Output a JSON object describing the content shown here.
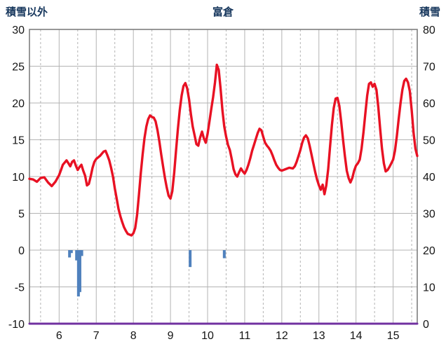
{
  "chart_data": {
    "type": "line",
    "title": "富倉",
    "left_axis_label": "積雪以外",
    "right_axis_label": "積雪",
    "x_ticks": [
      6,
      7,
      8,
      9,
      10,
      11,
      12,
      13,
      14,
      15
    ],
    "x_range": [
      5.2,
      15.65
    ],
    "left_axis": {
      "ticks": [
        -10,
        -5,
        0,
        5,
        10,
        15,
        20,
        25,
        30
      ],
      "range": [
        -10,
        30
      ]
    },
    "right_axis": {
      "ticks": [
        0,
        10,
        20,
        30,
        40,
        50,
        60,
        70,
        80
      ],
      "range": [
        0,
        80
      ]
    },
    "grid": {
      "vertical_solid_every": 1,
      "vertical_dashed_every": 0.5,
      "horizontal_every": 5
    },
    "legend": "none",
    "series": [
      {
        "name": "red-line-left-axis",
        "type": "line",
        "axis": "left",
        "points": [
          [
            5.2,
            9.7
          ],
          [
            5.3,
            9.6
          ],
          [
            5.4,
            9.3
          ],
          [
            5.5,
            9.8
          ],
          [
            5.6,
            9.9
          ],
          [
            5.7,
            9.2
          ],
          [
            5.8,
            8.7
          ],
          [
            5.9,
            9.3
          ],
          [
            6.0,
            10.2
          ],
          [
            6.05,
            10.9
          ],
          [
            6.1,
            11.6
          ],
          [
            6.2,
            12.2
          ],
          [
            6.25,
            11.8
          ],
          [
            6.3,
            11.4
          ],
          [
            6.35,
            12.0
          ],
          [
            6.4,
            12.2
          ],
          [
            6.45,
            11.5
          ],
          [
            6.5,
            10.9
          ],
          [
            6.55,
            11.3
          ],
          [
            6.6,
            11.6
          ],
          [
            6.65,
            10.8
          ],
          [
            6.7,
            10.1
          ],
          [
            6.75,
            8.8
          ],
          [
            6.8,
            9.0
          ],
          [
            6.85,
            10.0
          ],
          [
            6.9,
            11.2
          ],
          [
            6.95,
            12.0
          ],
          [
            7.0,
            12.4
          ],
          [
            7.1,
            12.8
          ],
          [
            7.2,
            13.4
          ],
          [
            7.25,
            13.5
          ],
          [
            7.3,
            12.9
          ],
          [
            7.35,
            12.2
          ],
          [
            7.4,
            11.2
          ],
          [
            7.45,
            10.0
          ],
          [
            7.5,
            8.4
          ],
          [
            7.55,
            7.0
          ],
          [
            7.6,
            5.6
          ],
          [
            7.65,
            4.6
          ],
          [
            7.7,
            3.8
          ],
          [
            7.75,
            3.1
          ],
          [
            7.8,
            2.6
          ],
          [
            7.85,
            2.2
          ],
          [
            7.9,
            2.1
          ],
          [
            7.95,
            2.0
          ],
          [
            8.0,
            2.3
          ],
          [
            8.05,
            3.0
          ],
          [
            8.1,
            4.8
          ],
          [
            8.15,
            7.5
          ],
          [
            8.2,
            10.5
          ],
          [
            8.25,
            13.0
          ],
          [
            8.3,
            15.2
          ],
          [
            8.35,
            16.8
          ],
          [
            8.4,
            17.8
          ],
          [
            8.45,
            18.3
          ],
          [
            8.5,
            18.1
          ],
          [
            8.55,
            18.0
          ],
          [
            8.6,
            17.5
          ],
          [
            8.65,
            16.3
          ],
          [
            8.7,
            14.8
          ],
          [
            8.75,
            13.0
          ],
          [
            8.8,
            11.4
          ],
          [
            8.85,
            9.8
          ],
          [
            8.9,
            8.5
          ],
          [
            8.95,
            7.4
          ],
          [
            9.0,
            7.0
          ],
          [
            9.05,
            8.0
          ],
          [
            9.1,
            10.5
          ],
          [
            9.15,
            13.5
          ],
          [
            9.2,
            16.5
          ],
          [
            9.25,
            19.0
          ],
          [
            9.3,
            21.0
          ],
          [
            9.35,
            22.3
          ],
          [
            9.4,
            22.7
          ],
          [
            9.45,
            22.0
          ],
          [
            9.5,
            20.5
          ],
          [
            9.55,
            18.5
          ],
          [
            9.6,
            16.8
          ],
          [
            9.65,
            15.6
          ],
          [
            9.7,
            14.4
          ],
          [
            9.75,
            14.2
          ],
          [
            9.8,
            15.3
          ],
          [
            9.85,
            16.1
          ],
          [
            9.9,
            15.2
          ],
          [
            9.95,
            14.6
          ],
          [
            10.0,
            15.8
          ],
          [
            10.05,
            17.5
          ],
          [
            10.1,
            19.2
          ],
          [
            10.15,
            20.8
          ],
          [
            10.2,
            22.8
          ],
          [
            10.25,
            25.2
          ],
          [
            10.3,
            24.5
          ],
          [
            10.35,
            22.0
          ],
          [
            10.4,
            19.0
          ],
          [
            10.45,
            16.8
          ],
          [
            10.5,
            15.4
          ],
          [
            10.55,
            14.3
          ],
          [
            10.6,
            13.6
          ],
          [
            10.65,
            12.4
          ],
          [
            10.7,
            11.0
          ],
          [
            10.75,
            10.3
          ],
          [
            10.8,
            10.0
          ],
          [
            10.85,
            10.6
          ],
          [
            10.9,
            11.1
          ],
          [
            10.95,
            10.7
          ],
          [
            11.0,
            10.4
          ],
          [
            11.05,
            10.9
          ],
          [
            11.1,
            11.6
          ],
          [
            11.15,
            12.5
          ],
          [
            11.2,
            13.5
          ],
          [
            11.25,
            14.3
          ],
          [
            11.3,
            15.1
          ],
          [
            11.35,
            15.9
          ],
          [
            11.4,
            16.5
          ],
          [
            11.45,
            16.3
          ],
          [
            11.5,
            15.4
          ],
          [
            11.55,
            14.6
          ],
          [
            11.6,
            14.2
          ],
          [
            11.65,
            13.9
          ],
          [
            11.7,
            13.5
          ],
          [
            11.75,
            12.9
          ],
          [
            11.8,
            12.2
          ],
          [
            11.85,
            11.6
          ],
          [
            11.9,
            11.2
          ],
          [
            11.95,
            10.9
          ],
          [
            12.0,
            10.8
          ],
          [
            12.1,
            11.0
          ],
          [
            12.2,
            11.2
          ],
          [
            12.3,
            11.1
          ],
          [
            12.35,
            11.4
          ],
          [
            12.4,
            12.0
          ],
          [
            12.45,
            12.8
          ],
          [
            12.5,
            13.6
          ],
          [
            12.55,
            14.6
          ],
          [
            12.6,
            15.3
          ],
          [
            12.65,
            15.6
          ],
          [
            12.7,
            15.2
          ],
          [
            12.75,
            14.2
          ],
          [
            12.8,
            13.0
          ],
          [
            12.85,
            11.8
          ],
          [
            12.9,
            10.6
          ],
          [
            12.95,
            9.6
          ],
          [
            13.0,
            8.8
          ],
          [
            13.05,
            8.2
          ],
          [
            13.1,
            8.9
          ],
          [
            13.15,
            7.6
          ],
          [
            13.2,
            8.8
          ],
          [
            13.25,
            11.0
          ],
          [
            13.3,
            14.0
          ],
          [
            13.35,
            17.0
          ],
          [
            13.4,
            19.3
          ],
          [
            13.45,
            20.6
          ],
          [
            13.5,
            20.7
          ],
          [
            13.55,
            19.6
          ],
          [
            13.6,
            17.5
          ],
          [
            13.65,
            15.0
          ],
          [
            13.7,
            12.8
          ],
          [
            13.75,
            10.8
          ],
          [
            13.8,
            9.8
          ],
          [
            13.85,
            9.2
          ],
          [
            13.9,
            9.8
          ],
          [
            13.95,
            10.8
          ],
          [
            14.0,
            11.5
          ],
          [
            14.05,
            11.8
          ],
          [
            14.1,
            12.3
          ],
          [
            14.15,
            13.8
          ],
          [
            14.2,
            16.0
          ],
          [
            14.25,
            18.5
          ],
          [
            14.3,
            21.0
          ],
          [
            14.35,
            22.6
          ],
          [
            14.4,
            22.8
          ],
          [
            14.45,
            22.2
          ],
          [
            14.5,
            22.6
          ],
          [
            14.55,
            21.8
          ],
          [
            14.6,
            19.5
          ],
          [
            14.65,
            16.5
          ],
          [
            14.7,
            13.8
          ],
          [
            14.75,
            11.8
          ],
          [
            14.8,
            10.7
          ],
          [
            14.85,
            10.9
          ],
          [
            14.9,
            11.3
          ],
          [
            14.95,
            11.8
          ],
          [
            15.0,
            12.3
          ],
          [
            15.05,
            13.5
          ],
          [
            15.1,
            15.5
          ],
          [
            15.15,
            17.8
          ],
          [
            15.2,
            20.0
          ],
          [
            15.25,
            21.8
          ],
          [
            15.3,
            23.0
          ],
          [
            15.35,
            23.3
          ],
          [
            15.4,
            22.8
          ],
          [
            15.45,
            21.6
          ],
          [
            15.5,
            19.0
          ],
          [
            15.55,
            16.0
          ],
          [
            15.6,
            13.8
          ],
          [
            15.65,
            12.8
          ]
        ]
      },
      {
        "name": "blue-bars-left-axis",
        "type": "bar",
        "axis": "left",
        "points": [
          [
            6.28,
            -1.0
          ],
          [
            6.33,
            -0.4
          ],
          [
            6.47,
            -1.4
          ],
          [
            6.52,
            -6.3
          ],
          [
            6.56,
            -5.7
          ],
          [
            6.61,
            -0.8
          ],
          [
            9.53,
            -2.3
          ],
          [
            10.45,
            -1.1
          ]
        ]
      },
      {
        "name": "purple-line-right-axis",
        "type": "line",
        "axis": "right",
        "points": [
          [
            5.2,
            0
          ],
          [
            15.65,
            0
          ]
        ]
      }
    ]
  },
  "colors": {
    "red_line": "#e81123",
    "blue_bars": "#4f81bd",
    "purple_line": "#7030a0",
    "grid": "#b3b3b3",
    "border": "#7f7f7f",
    "tick_text": "#141414",
    "header_text": "#17375d",
    "background": "#ffffff"
  }
}
